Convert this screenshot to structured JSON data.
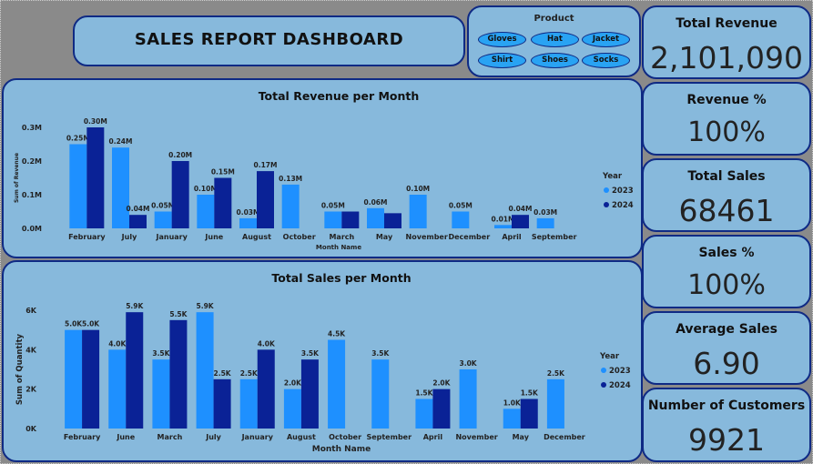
{
  "header": {
    "title": "SALES REPORT DASHBOARD"
  },
  "slicer": {
    "title": "Product",
    "options": [
      "Gloves",
      "Hat",
      "Jacket",
      "Shirt",
      "Shoes",
      "Socks"
    ]
  },
  "kpis": [
    {
      "label": "Total Revenue",
      "value": "2,101,090"
    },
    {
      "label": "Revenue %",
      "value": "100%"
    },
    {
      "label": "Total Sales",
      "value": "68461"
    },
    {
      "label": "Sales %",
      "value": "100%"
    },
    {
      "label": "Average Sales",
      "value": "6.90"
    },
    {
      "label": "Number of Customers",
      "value": "9921"
    }
  ],
  "colors": {
    "y2023": "#1e90ff",
    "y2024": "#0a2296",
    "panel": "#87b9dc",
    "border": "#0f2a84"
  },
  "chart_data": [
    {
      "type": "bar",
      "title": "Total Revenue per Month",
      "xlabel": "Month Name",
      "ylabel": "Sum of Revenue",
      "ylim": [
        0,
        0.3
      ],
      "yticks": [
        0,
        0.1,
        0.2,
        0.3
      ],
      "ytick_labels": [
        "0.0M",
        "0.1M",
        "0.2M",
        "0.3M"
      ],
      "legend_title": "Year",
      "legend_position": "right",
      "categories": [
        "February",
        "July",
        "January",
        "June",
        "August",
        "October",
        "March",
        "May",
        "November",
        "December",
        "April",
        "September"
      ],
      "series": [
        {
          "name": "2023",
          "values": [
            0.25,
            0.24,
            0.05,
            0.1,
            0.03,
            0.13,
            0.05,
            0.06,
            0.1,
            0.05,
            0.01,
            0.03
          ],
          "labels": [
            "0.25M",
            "0.24M",
            "0.05M",
            "0.10M",
            "0.03M",
            "0.13M",
            "0.05M",
            "0.06M",
            "0.10M",
            "0.05M",
            "0.01M",
            "0.03M"
          ]
        },
        {
          "name": "2024",
          "values": [
            0.3,
            0.04,
            0.2,
            0.15,
            0.17,
            null,
            0.05,
            0.045,
            null,
            null,
            0.04,
            null
          ],
          "labels": [
            "0.30M",
            "0.04M",
            "0.20M",
            "0.15M",
            "0.17M",
            "",
            "",
            "",
            "",
            "",
            "0.04M",
            ""
          ]
        }
      ]
    },
    {
      "type": "bar",
      "title": "Total Sales per Month",
      "xlabel": "Month Name",
      "ylabel": "Sum of Quantity",
      "ylim": [
        0,
        6
      ],
      "yticks": [
        0,
        2,
        4,
        6
      ],
      "ytick_labels": [
        "0K",
        "2K",
        "4K",
        "6K"
      ],
      "legend_title": "Year",
      "legend_position": "right",
      "categories": [
        "February",
        "June",
        "March",
        "July",
        "January",
        "August",
        "October",
        "September",
        "April",
        "November",
        "May",
        "December"
      ],
      "series": [
        {
          "name": "2023",
          "values": [
            5.0,
            4.0,
            3.5,
            5.9,
            2.5,
            2.0,
            4.5,
            3.5,
            1.5,
            3.0,
            1.0,
            2.5
          ],
          "labels": [
            "5.0K",
            "4.0K",
            "3.5K",
            "5.9K",
            "2.5K",
            "2.0K",
            "4.5K",
            "3.5K",
            "1.5K",
            "3.0K",
            "1.0K",
            "2.5K"
          ]
        },
        {
          "name": "2024",
          "values": [
            5.0,
            5.9,
            5.5,
            2.5,
            4.0,
            3.5,
            null,
            null,
            2.0,
            null,
            1.5,
            null
          ],
          "labels": [
            "5.0K",
            "5.9K",
            "5.5K",
            "2.5K",
            "4.0K",
            "3.5K",
            "",
            "",
            "2.0K",
            "",
            "1.5K",
            ""
          ]
        }
      ]
    }
  ]
}
